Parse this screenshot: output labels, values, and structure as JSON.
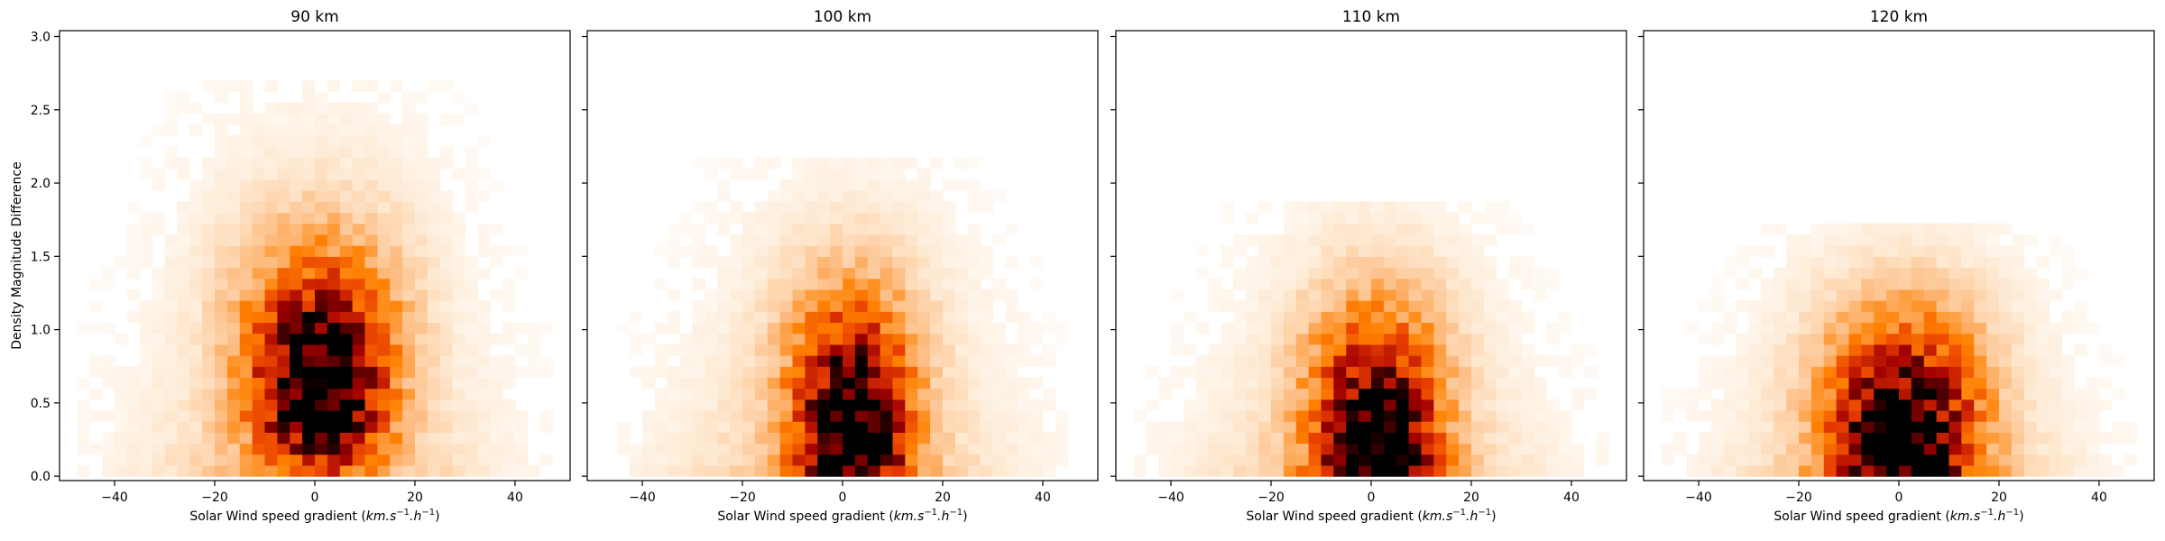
{
  "chart_data": [
    {
      "type": "heatmap",
      "title": "90 km",
      "xlabel": "Solar Wind speed gradient ($km.s^{-1}.h^{-1}$)",
      "ylabel": "Density Magnitude Difference",
      "xlim": [
        -51,
        51
      ],
      "ylim": [
        -0.03,
        3.04
      ],
      "xticks": [
        -40,
        -20,
        0,
        20,
        40
      ],
      "yticks": [
        0.0,
        0.5,
        1.0,
        1.5,
        2.0,
        2.5,
        3.0
      ],
      "colormap": "Oranges-to-black (gist_heat_r)",
      "bins": {
        "x_step": 2.5,
        "y_step": 0.075
      },
      "density_peak": {
        "x": 1,
        "y": 0.55,
        "sx": 9,
        "sy": 0.33
      },
      "support": {
        "max_y": 2.65,
        "max_abs_x": 48
      }
    },
    {
      "type": "heatmap",
      "title": "100 km",
      "xlabel": "Solar Wind speed gradient ($km.s^{-1}.h^{-1}$)",
      "ylabel": "",
      "xlim": [
        -51,
        51
      ],
      "ylim": [
        -0.03,
        3.04
      ],
      "xticks": [
        -40,
        -20,
        0,
        20,
        40
      ],
      "yticks": [
        0.0,
        0.5,
        1.0,
        1.5,
        2.0,
        2.5,
        3.0
      ],
      "colormap": "Oranges-to-black (gist_heat_r)",
      "bins": {
        "x_step": 2.5,
        "y_step": 0.075
      },
      "density_peak": {
        "x": 2,
        "y": 0.25,
        "sx": 7.5,
        "sy": 0.33
      },
      "support": {
        "max_y": 2.1,
        "max_abs_x": 45
      }
    },
    {
      "type": "heatmap",
      "title": "110 km",
      "xlabel": "Solar Wind speed gradient ($km.s^{-1}.h^{-1}$)",
      "ylabel": "",
      "xlim": [
        -51,
        51
      ],
      "ylim": [
        -0.03,
        3.04
      ],
      "xticks": [
        -40,
        -20,
        0,
        20,
        40
      ],
      "yticks": [
        0.0,
        0.5,
        1.0,
        1.5,
        2.0,
        2.5,
        3.0
      ],
      "colormap": "Oranges-to-black (gist_heat_r)",
      "bins": {
        "x_step": 2.5,
        "y_step": 0.075
      },
      "density_peak": {
        "x": 1,
        "y": 0.15,
        "sx": 8,
        "sy": 0.33
      },
      "support": {
        "max_y": 1.8,
        "max_abs_x": 48
      }
    },
    {
      "type": "heatmap",
      "title": "120 km",
      "xlabel": "Solar Wind speed gradient ($km.s^{-1}.h^{-1}$)",
      "ylabel": "",
      "xlim": [
        -51,
        51
      ],
      "ylim": [
        -0.03,
        3.04
      ],
      "xticks": [
        -40,
        -20,
        0,
        20,
        40
      ],
      "yticks": [
        0.0,
        0.5,
        1.0,
        1.5,
        2.0,
        2.5,
        3.0
      ],
      "colormap": "Oranges-to-black (gist_heat_r)",
      "bins": {
        "x_step": 2.5,
        "y_step": 0.075
      },
      "density_peak": {
        "x": 1,
        "y": 0.2,
        "sx": 9.5,
        "sy": 0.3
      },
      "support": {
        "max_y": 1.65,
        "max_abs_x": 48
      }
    }
  ]
}
